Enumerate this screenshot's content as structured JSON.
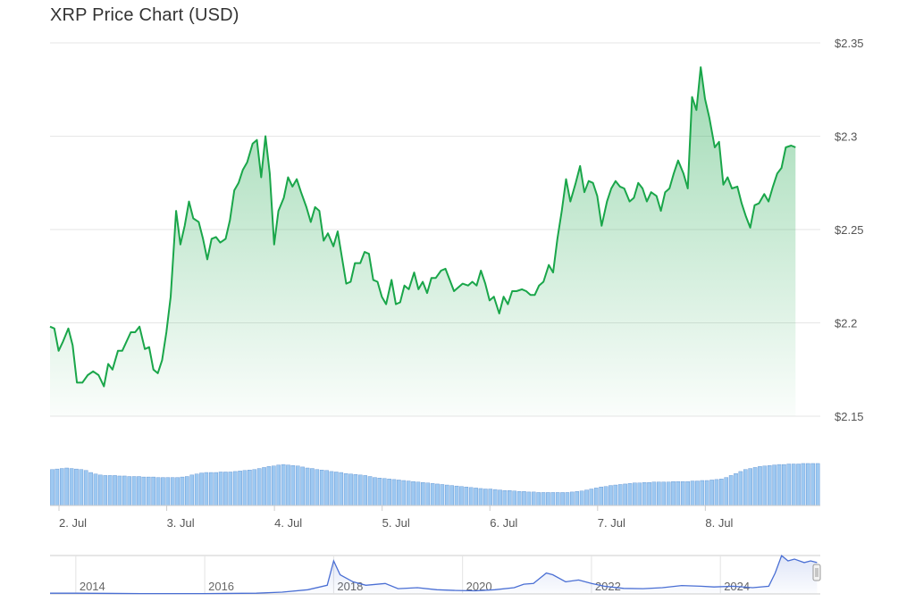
{
  "title": "XRP Price Chart (USD)",
  "chart_data": {
    "type": "area",
    "title": "XRP Price Chart (USD)",
    "y_tick_labels": [
      "$2.35",
      "$2.3",
      "$2.25",
      "$2.2",
      "$2.15"
    ],
    "ylim": [
      2.15,
      2.35
    ],
    "x_tick_labels": [
      "2. Jul",
      "3. Jul",
      "4. Jul",
      "5. Jul",
      "6. Jul",
      "7. Jul",
      "8. Jul"
    ],
    "x_tick_positions": [
      0.083,
      1.083,
      2.083,
      3.083,
      4.083,
      5.083,
      6.083
    ],
    "x_domain": [
      0,
      7.15
    ],
    "grid": true,
    "line_color": "#1aa64a",
    "fill_color": "#1aa64a",
    "price": [
      [
        0.0,
        2.198
      ],
      [
        0.04,
        2.197
      ],
      [
        0.08,
        2.185
      ],
      [
        0.12,
        2.19
      ],
      [
        0.17,
        2.197
      ],
      [
        0.21,
        2.188
      ],
      [
        0.25,
        2.168
      ],
      [
        0.3,
        2.168
      ],
      [
        0.35,
        2.172
      ],
      [
        0.4,
        2.174
      ],
      [
        0.45,
        2.172
      ],
      [
        0.5,
        2.166
      ],
      [
        0.54,
        2.178
      ],
      [
        0.58,
        2.175
      ],
      [
        0.63,
        2.185
      ],
      [
        0.67,
        2.185
      ],
      [
        0.71,
        2.19
      ],
      [
        0.75,
        2.195
      ],
      [
        0.79,
        2.195
      ],
      [
        0.83,
        2.198
      ],
      [
        0.88,
        2.186
      ],
      [
        0.92,
        2.187
      ],
      [
        0.96,
        2.175
      ],
      [
        1.0,
        2.173
      ],
      [
        1.04,
        2.18
      ],
      [
        1.08,
        2.195
      ],
      [
        1.12,
        2.214
      ],
      [
        1.17,
        2.26
      ],
      [
        1.21,
        2.242
      ],
      [
        1.25,
        2.252
      ],
      [
        1.29,
        2.265
      ],
      [
        1.33,
        2.256
      ],
      [
        1.38,
        2.254
      ],
      [
        1.42,
        2.245
      ],
      [
        1.46,
        2.234
      ],
      [
        1.5,
        2.245
      ],
      [
        1.54,
        2.246
      ],
      [
        1.58,
        2.243
      ],
      [
        1.63,
        2.245
      ],
      [
        1.67,
        2.255
      ],
      [
        1.71,
        2.271
      ],
      [
        1.75,
        2.275
      ],
      [
        1.79,
        2.282
      ],
      [
        1.83,
        2.286
      ],
      [
        1.88,
        2.296
      ],
      [
        1.92,
        2.298
      ],
      [
        1.96,
        2.278
      ],
      [
        2.0,
        2.3
      ],
      [
        2.04,
        2.28
      ],
      [
        2.08,
        2.242
      ],
      [
        2.12,
        2.26
      ],
      [
        2.17,
        2.267
      ],
      [
        2.21,
        2.278
      ],
      [
        2.25,
        2.273
      ],
      [
        2.29,
        2.277
      ],
      [
        2.33,
        2.27
      ],
      [
        2.38,
        2.262
      ],
      [
        2.42,
        2.254
      ],
      [
        2.46,
        2.262
      ],
      [
        2.5,
        2.26
      ],
      [
        2.54,
        2.244
      ],
      [
        2.58,
        2.248
      ],
      [
        2.63,
        2.241
      ],
      [
        2.67,
        2.249
      ],
      [
        2.71,
        2.235
      ],
      [
        2.75,
        2.221
      ],
      [
        2.79,
        2.222
      ],
      [
        2.83,
        2.232
      ],
      [
        2.88,
        2.232
      ],
      [
        2.92,
        2.238
      ],
      [
        2.96,
        2.237
      ],
      [
        3.0,
        2.223
      ],
      [
        3.04,
        2.222
      ],
      [
        3.08,
        2.214
      ],
      [
        3.12,
        2.21
      ],
      [
        3.17,
        2.223
      ],
      [
        3.21,
        2.21
      ],
      [
        3.25,
        2.211
      ],
      [
        3.29,
        2.22
      ],
      [
        3.33,
        2.218
      ],
      [
        3.38,
        2.227
      ],
      [
        3.42,
        2.218
      ],
      [
        3.46,
        2.222
      ],
      [
        3.5,
        2.216
      ],
      [
        3.54,
        2.224
      ],
      [
        3.58,
        2.224
      ],
      [
        3.63,
        2.228
      ],
      [
        3.67,
        2.229
      ],
      [
        3.71,
        2.223
      ],
      [
        3.75,
        2.217
      ],
      [
        3.79,
        2.219
      ],
      [
        3.83,
        2.221
      ],
      [
        3.88,
        2.22
      ],
      [
        3.92,
        2.222
      ],
      [
        3.96,
        2.22
      ],
      [
        4.0,
        2.228
      ],
      [
        4.04,
        2.221
      ],
      [
        4.08,
        2.212
      ],
      [
        4.12,
        2.214
      ],
      [
        4.17,
        2.205
      ],
      [
        4.21,
        2.214
      ],
      [
        4.25,
        2.21
      ],
      [
        4.29,
        2.217
      ],
      [
        4.33,
        2.217
      ],
      [
        4.38,
        2.218
      ],
      [
        4.42,
        2.217
      ],
      [
        4.46,
        2.215
      ],
      [
        4.5,
        2.215
      ],
      [
        4.54,
        2.22
      ],
      [
        4.58,
        2.222
      ],
      [
        4.63,
        2.231
      ],
      [
        4.67,
        2.227
      ],
      [
        4.71,
        2.245
      ],
      [
        4.75,
        2.26
      ],
      [
        4.79,
        2.277
      ],
      [
        4.83,
        2.265
      ],
      [
        4.88,
        2.275
      ],
      [
        4.92,
        2.284
      ],
      [
        4.96,
        2.27
      ],
      [
        5.0,
        2.276
      ],
      [
        5.04,
        2.275
      ],
      [
        5.08,
        2.268
      ],
      [
        5.12,
        2.252
      ],
      [
        5.17,
        2.265
      ],
      [
        5.21,
        2.272
      ],
      [
        5.25,
        2.276
      ],
      [
        5.29,
        2.273
      ],
      [
        5.33,
        2.272
      ],
      [
        5.38,
        2.265
      ],
      [
        5.42,
        2.267
      ],
      [
        5.46,
        2.275
      ],
      [
        5.5,
        2.272
      ],
      [
        5.54,
        2.265
      ],
      [
        5.58,
        2.27
      ],
      [
        5.63,
        2.268
      ],
      [
        5.67,
        2.26
      ],
      [
        5.71,
        2.27
      ],
      [
        5.75,
        2.272
      ],
      [
        5.79,
        2.28
      ],
      [
        5.83,
        2.287
      ],
      [
        5.88,
        2.28
      ],
      [
        5.92,
        2.272
      ],
      [
        5.96,
        2.321
      ],
      [
        6.0,
        2.314
      ],
      [
        6.04,
        2.337
      ],
      [
        6.08,
        2.32
      ],
      [
        6.12,
        2.31
      ],
      [
        6.17,
        2.294
      ],
      [
        6.21,
        2.297
      ],
      [
        6.25,
        2.274
      ],
      [
        6.29,
        2.278
      ],
      [
        6.33,
        2.272
      ],
      [
        6.38,
        2.273
      ],
      [
        6.42,
        2.264
      ],
      [
        6.46,
        2.257
      ],
      [
        6.5,
        2.251
      ],
      [
        6.54,
        2.263
      ],
      [
        6.58,
        2.264
      ],
      [
        6.63,
        2.269
      ],
      [
        6.67,
        2.265
      ],
      [
        6.71,
        2.273
      ],
      [
        6.75,
        2.28
      ],
      [
        6.79,
        2.283
      ],
      [
        6.83,
        2.294
      ],
      [
        6.88,
        2.295
      ],
      [
        6.92,
        2.294
      ]
    ],
    "volume_color": "#7cb5ec",
    "volume": [
      0.72,
      0.73,
      0.74,
      0.75,
      0.74,
      0.73,
      0.72,
      0.7,
      0.66,
      0.63,
      0.61,
      0.6,
      0.6,
      0.6,
      0.59,
      0.59,
      0.58,
      0.58,
      0.58,
      0.57,
      0.57,
      0.57,
      0.56,
      0.56,
      0.56,
      0.56,
      0.56,
      0.57,
      0.58,
      0.61,
      0.63,
      0.65,
      0.66,
      0.66,
      0.66,
      0.67,
      0.67,
      0.67,
      0.68,
      0.69,
      0.7,
      0.71,
      0.72,
      0.74,
      0.76,
      0.78,
      0.79,
      0.81,
      0.82,
      0.81,
      0.8,
      0.79,
      0.77,
      0.75,
      0.74,
      0.72,
      0.71,
      0.7,
      0.68,
      0.67,
      0.66,
      0.64,
      0.63,
      0.62,
      0.61,
      0.6,
      0.58,
      0.56,
      0.55,
      0.54,
      0.53,
      0.52,
      0.51,
      0.5,
      0.49,
      0.48,
      0.47,
      0.46,
      0.45,
      0.44,
      0.43,
      0.42,
      0.41,
      0.4,
      0.39,
      0.38,
      0.37,
      0.36,
      0.35,
      0.34,
      0.33,
      0.33,
      0.32,
      0.31,
      0.3,
      0.3,
      0.29,
      0.28,
      0.28,
      0.27,
      0.27,
      0.26,
      0.26,
      0.26,
      0.26,
      0.26,
      0.26,
      0.26,
      0.27,
      0.28,
      0.29,
      0.31,
      0.33,
      0.35,
      0.37,
      0.38,
      0.4,
      0.41,
      0.42,
      0.43,
      0.44,
      0.45,
      0.45,
      0.46,
      0.46,
      0.47,
      0.47,
      0.47,
      0.47,
      0.48,
      0.48,
      0.48,
      0.48,
      0.49,
      0.49,
      0.5,
      0.5,
      0.51,
      0.52,
      0.53,
      0.56,
      0.6,
      0.64,
      0.68,
      0.72,
      0.74,
      0.76,
      0.78,
      0.79,
      0.8,
      0.81,
      0.82,
      0.82,
      0.83,
      0.83,
      0.83,
      0.84,
      0.84,
      0.84,
      0.84
    ],
    "navigator": {
      "x_tick_labels": [
        "2014",
        "2016",
        "2018",
        "2020",
        "2022",
        "2024"
      ],
      "x_tick_positions": [
        2014,
        2016,
        2018,
        2020,
        2022,
        2024
      ],
      "x_domain": [
        2013.6,
        2025.55
      ],
      "line_color": "#4a6fd4",
      "series": [
        [
          2013.6,
          0.02
        ],
        [
          2014.0,
          0.02
        ],
        [
          2015.0,
          0.01
        ],
        [
          2016.0,
          0.01
        ],
        [
          2016.8,
          0.02
        ],
        [
          2017.2,
          0.05
        ],
        [
          2017.6,
          0.12
        ],
        [
          2017.9,
          0.25
        ],
        [
          2018.0,
          0.95
        ],
        [
          2018.1,
          0.55
        ],
        [
          2018.3,
          0.35
        ],
        [
          2018.5,
          0.25
        ],
        [
          2018.8,
          0.3
        ],
        [
          2019.0,
          0.15
        ],
        [
          2019.3,
          0.18
        ],
        [
          2019.6,
          0.12
        ],
        [
          2019.9,
          0.1
        ],
        [
          2020.2,
          0.09
        ],
        [
          2020.5,
          0.12
        ],
        [
          2020.8,
          0.18
        ],
        [
          2020.95,
          0.28
        ],
        [
          2021.1,
          0.3
        ],
        [
          2021.3,
          0.6
        ],
        [
          2021.4,
          0.55
        ],
        [
          2021.6,
          0.35
        ],
        [
          2021.8,
          0.4
        ],
        [
          2022.0,
          0.3
        ],
        [
          2022.2,
          0.22
        ],
        [
          2022.5,
          0.16
        ],
        [
          2022.8,
          0.15
        ],
        [
          2023.1,
          0.18
        ],
        [
          2023.4,
          0.24
        ],
        [
          2023.7,
          0.22
        ],
        [
          2023.9,
          0.2
        ],
        [
          2024.2,
          0.22
        ],
        [
          2024.5,
          0.18
        ],
        [
          2024.75,
          0.22
        ],
        [
          2024.85,
          0.6
        ],
        [
          2024.95,
          1.1
        ],
        [
          2025.05,
          0.95
        ],
        [
          2025.15,
          1.0
        ],
        [
          2025.3,
          0.9
        ],
        [
          2025.4,
          0.95
        ],
        [
          2025.5,
          0.9
        ]
      ]
    }
  }
}
